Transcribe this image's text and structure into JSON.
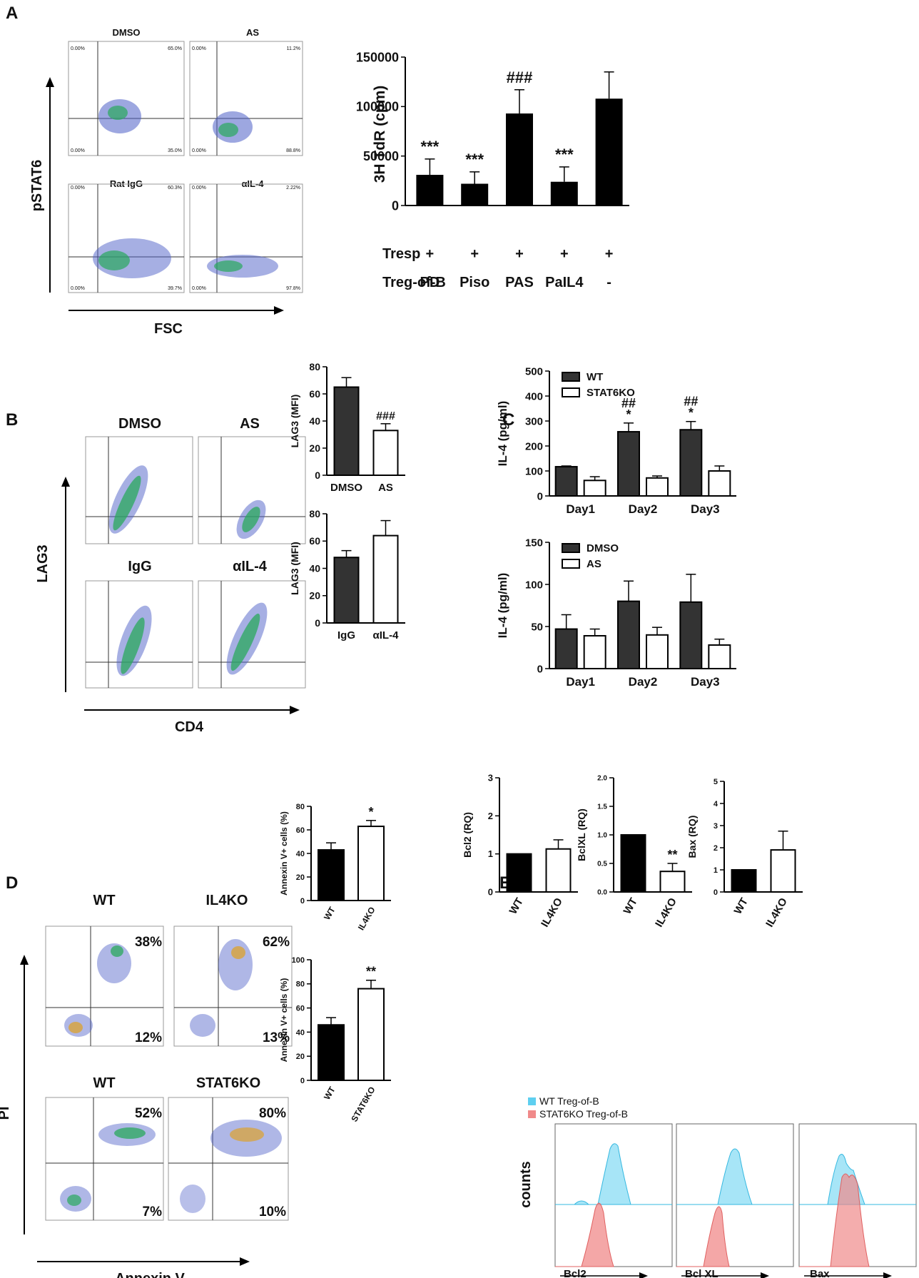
{
  "panels": {
    "A": "A",
    "B": "B",
    "C": "C",
    "D": "D",
    "E": "E"
  },
  "colors": {
    "black": "#000000",
    "dark_gray": "#333333",
    "white": "#ffffff",
    "cyan": "#5ecff0",
    "red": "#f08a8a"
  },
  "panelA": {
    "flow_titles": [
      "DMSO",
      "AS",
      "Rat IgG",
      "αIL-4"
    ],
    "flow_pcts": [
      [
        "0.00%",
        "65.0%",
        "0.00%",
        "35.0%"
      ],
      [
        "0.00%",
        "11.2%",
        "0.00%",
        "88.8%"
      ],
      [
        "0.00%",
        "60.3%",
        "0.00%",
        "39.7%"
      ],
      [
        "0.00%",
        "2.22%",
        "0.00%",
        "97.8%"
      ]
    ],
    "ylabel": "pSTAT6",
    "xlabel": "FSC"
  },
  "panelB": {
    "flow_titles": [
      "DMSO",
      "AS",
      "IgG",
      "αIL-4"
    ],
    "ylabel": "LAG3",
    "xlabel": "CD4"
  },
  "panelD": {
    "flow_titles": [
      "WT",
      "IL4KO",
      "WT",
      "STAT6KO"
    ],
    "flow_pcts": [
      [
        "38%",
        "12%"
      ],
      [
        "62%",
        "13%"
      ],
      [
        "52%",
        "7%"
      ],
      [
        "80%",
        "10%"
      ]
    ],
    "ylabel": "PI",
    "xlabel": "Annexin V"
  },
  "panelE": {
    "legend": [
      "WT Treg-of-B",
      "STAT6KO Treg-of-B"
    ],
    "hist_ylabel": "counts",
    "hist_xlabels": [
      "Bcl2",
      "Bcl XL",
      "Bax"
    ]
  },
  "chart_data": [
    {
      "id": "A_bar",
      "type": "bar",
      "ylabel": "3H TdR (cpm)",
      "ylim": [
        0,
        150000
      ],
      "yticks": [
        "0",
        "50000",
        "100000",
        "150000"
      ],
      "row_labels": [
        "Tresp",
        "Treg-of-B"
      ],
      "tresp": [
        "+",
        "+",
        "+",
        "+",
        "+"
      ],
      "categories": [
        "PD",
        "Piso",
        "PAS",
        "PaIL4",
        "-"
      ],
      "values": [
        31000,
        22000,
        93000,
        24000,
        108000
      ],
      "errors": [
        16000,
        12000,
        24000,
        15000,
        27000
      ],
      "annotations": [
        "***",
        "***",
        "###",
        "***",
        ""
      ]
    },
    {
      "id": "B_top",
      "type": "bar",
      "ylabel": "LAG3 (MFI)",
      "ylim": [
        0,
        80
      ],
      "yticks": [
        "0",
        "20",
        "40",
        "60",
        "80"
      ],
      "categories": [
        "DMSO",
        "AS"
      ],
      "values": [
        65,
        33
      ],
      "errors": [
        7,
        5
      ],
      "annotations": [
        "",
        "###"
      ]
    },
    {
      "id": "B_bottom",
      "type": "bar",
      "ylabel": "LAG3 (MFI)",
      "ylim": [
        0,
        80
      ],
      "yticks": [
        "0",
        "20",
        "40",
        "60",
        "80"
      ],
      "categories": [
        "IgG",
        "αIL-4"
      ],
      "values": [
        48,
        64
      ],
      "errors": [
        5,
        11
      ],
      "annotations": [
        "",
        ""
      ]
    },
    {
      "id": "C_top",
      "type": "bar",
      "ylabel": "IL-4 (pg/ml)",
      "ylim": [
        0,
        500
      ],
      "yticks": [
        "0",
        "100",
        "200",
        "300",
        "400",
        "500"
      ],
      "categories": [
        "Day1",
        "Day2",
        "Day3"
      ],
      "series": [
        {
          "name": "WT",
          "values": [
            117,
            257,
            265
          ],
          "errors": [
            3,
            35,
            33
          ]
        },
        {
          "name": "STAT6KO",
          "values": [
            62,
            72,
            100
          ],
          "errors": [
            15,
            8,
            20
          ]
        }
      ],
      "annotations": [
        "",
        "##\n*",
        "##\n*"
      ]
    },
    {
      "id": "C_bottom",
      "type": "bar",
      "ylabel": "IL-4 (pg/ml)",
      "ylim": [
        0,
        150
      ],
      "yticks": [
        "0",
        "50",
        "100",
        "150"
      ],
      "categories": [
        "Day1",
        "Day2",
        "Day3"
      ],
      "series": [
        {
          "name": "DMSO",
          "values": [
            47,
            80,
            79
          ],
          "errors": [
            17,
            24,
            33
          ]
        },
        {
          "name": "AS",
          "values": [
            39,
            40,
            28
          ],
          "errors": [
            8,
            9,
            7
          ]
        }
      ],
      "annotations": [
        "",
        "",
        ""
      ]
    },
    {
      "id": "D_top",
      "type": "bar",
      "ylabel": "Annexin V+ cells (%)",
      "ylim": [
        0,
        80
      ],
      "yticks": [
        "0",
        "20",
        "40",
        "60",
        "80"
      ],
      "categories": [
        "WT",
        "IL4KO"
      ],
      "values": [
        43,
        63
      ],
      "errors": [
        6,
        5
      ],
      "annotations": [
        "",
        "*"
      ]
    },
    {
      "id": "D_bottom",
      "type": "bar",
      "ylabel": "Annexin V+ cells (%)",
      "ylim": [
        0,
        100
      ],
      "yticks": [
        "0",
        "20",
        "40",
        "60",
        "80",
        "100"
      ],
      "categories": [
        "WT",
        "STAT6KO"
      ],
      "values": [
        46,
        76
      ],
      "errors": [
        6,
        7
      ],
      "annotations": [
        "",
        "**"
      ]
    },
    {
      "id": "E1",
      "type": "bar",
      "ylabel": "Bcl2 (RQ)",
      "ylim": [
        0,
        3
      ],
      "yticks": [
        "0",
        "1",
        "2",
        "3"
      ],
      "categories": [
        "WT",
        "IL4KO"
      ],
      "values": [
        1.0,
        1.13
      ],
      "errors": [
        0,
        0.24
      ],
      "annotations": [
        "",
        ""
      ]
    },
    {
      "id": "E2",
      "type": "bar",
      "ylabel": "BclXL (RQ)",
      "ylim": [
        0,
        2.0
      ],
      "yticks": [
        "0.0",
        "0.5",
        "1.0",
        "1.5",
        "2.0"
      ],
      "categories": [
        "WT",
        "IL4KO"
      ],
      "values": [
        1.0,
        0.36
      ],
      "errors": [
        0,
        0.14
      ],
      "annotations": [
        "",
        "**"
      ]
    },
    {
      "id": "E3",
      "type": "bar",
      "ylabel": "Bax (RQ)",
      "ylim": [
        0,
        5
      ],
      "yticks": [
        "0",
        "1",
        "2",
        "3",
        "4",
        "5"
      ],
      "categories": [
        "WT",
        "IL4KO"
      ],
      "values": [
        1.0,
        1.9
      ],
      "errors": [
        0,
        0.85
      ],
      "annotations": [
        "",
        ""
      ]
    }
  ]
}
